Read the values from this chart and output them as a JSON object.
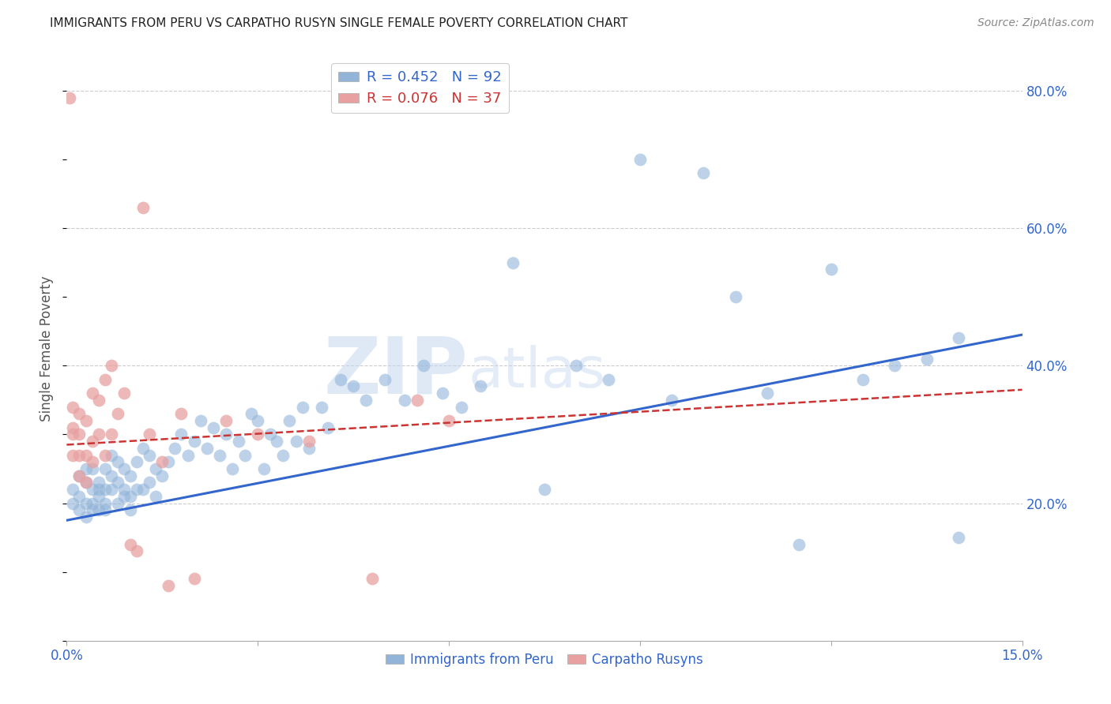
{
  "title": "IMMIGRANTS FROM PERU VS CARPATHO RUSYN SINGLE FEMALE POVERTY CORRELATION CHART",
  "source": "Source: ZipAtlas.com",
  "ylabel": "Single Female Poverty",
  "xlim": [
    0.0,
    0.15
  ],
  "ylim": [
    0.0,
    0.85
  ],
  "xticks": [
    0.0,
    0.03,
    0.06,
    0.09,
    0.12,
    0.15
  ],
  "xticklabels": [
    "0.0%",
    "",
    "",
    "",
    "",
    "15.0%"
  ],
  "yticks_right": [
    0.2,
    0.4,
    0.6,
    0.8
  ],
  "ytick_labels_right": [
    "20.0%",
    "40.0%",
    "60.0%",
    "80.0%"
  ],
  "legend_blue_r": "0.452",
  "legend_blue_n": "92",
  "legend_pink_r": "0.076",
  "legend_pink_n": "37",
  "legend_blue_label": "Immigrants from Peru",
  "legend_pink_label": "Carpatho Rusyns",
  "blue_color": "#92b4d9",
  "pink_color": "#e8a0a0",
  "line_blue_color": "#3366cc",
  "line_pink_color": "#cc3333",
  "title_color": "#222222",
  "axis_label_color": "#3366cc",
  "blue_scatter_x": [
    0.001,
    0.001,
    0.002,
    0.002,
    0.002,
    0.003,
    0.003,
    0.003,
    0.003,
    0.004,
    0.004,
    0.004,
    0.004,
    0.005,
    0.005,
    0.005,
    0.005,
    0.006,
    0.006,
    0.006,
    0.006,
    0.007,
    0.007,
    0.007,
    0.008,
    0.008,
    0.008,
    0.009,
    0.009,
    0.009,
    0.01,
    0.01,
    0.01,
    0.011,
    0.011,
    0.012,
    0.012,
    0.013,
    0.013,
    0.014,
    0.014,
    0.015,
    0.016,
    0.017,
    0.018,
    0.019,
    0.02,
    0.021,
    0.022,
    0.023,
    0.024,
    0.025,
    0.026,
    0.027,
    0.028,
    0.029,
    0.03,
    0.031,
    0.032,
    0.033,
    0.034,
    0.035,
    0.036,
    0.037,
    0.038,
    0.04,
    0.041,
    0.043,
    0.045,
    0.047,
    0.05,
    0.053,
    0.056,
    0.059,
    0.062,
    0.065,
    0.07,
    0.075,
    0.08,
    0.085,
    0.09,
    0.095,
    0.1,
    0.105,
    0.11,
    0.115,
    0.12,
    0.125,
    0.13,
    0.135,
    0.14,
    0.14
  ],
  "blue_scatter_y": [
    0.22,
    0.2,
    0.24,
    0.21,
    0.19,
    0.25,
    0.23,
    0.2,
    0.18,
    0.22,
    0.25,
    0.2,
    0.19,
    0.23,
    0.21,
    0.19,
    0.22,
    0.25,
    0.22,
    0.2,
    0.19,
    0.27,
    0.24,
    0.22,
    0.26,
    0.23,
    0.2,
    0.25,
    0.22,
    0.21,
    0.24,
    0.21,
    0.19,
    0.26,
    0.22,
    0.28,
    0.22,
    0.27,
    0.23,
    0.25,
    0.21,
    0.24,
    0.26,
    0.28,
    0.3,
    0.27,
    0.29,
    0.32,
    0.28,
    0.31,
    0.27,
    0.3,
    0.25,
    0.29,
    0.27,
    0.33,
    0.32,
    0.25,
    0.3,
    0.29,
    0.27,
    0.32,
    0.29,
    0.34,
    0.28,
    0.34,
    0.31,
    0.38,
    0.37,
    0.35,
    0.38,
    0.35,
    0.4,
    0.36,
    0.34,
    0.37,
    0.55,
    0.22,
    0.4,
    0.38,
    0.7,
    0.35,
    0.68,
    0.5,
    0.36,
    0.14,
    0.54,
    0.38,
    0.4,
    0.41,
    0.44,
    0.15
  ],
  "pink_scatter_x": [
    0.0005,
    0.001,
    0.001,
    0.001,
    0.001,
    0.002,
    0.002,
    0.002,
    0.002,
    0.003,
    0.003,
    0.003,
    0.004,
    0.004,
    0.004,
    0.005,
    0.005,
    0.006,
    0.006,
    0.007,
    0.007,
    0.008,
    0.009,
    0.01,
    0.011,
    0.012,
    0.013,
    0.015,
    0.016,
    0.018,
    0.02,
    0.025,
    0.03,
    0.038,
    0.048,
    0.055,
    0.06
  ],
  "pink_scatter_y": [
    0.79,
    0.31,
    0.27,
    0.34,
    0.3,
    0.27,
    0.24,
    0.33,
    0.3,
    0.32,
    0.27,
    0.23,
    0.36,
    0.29,
    0.26,
    0.35,
    0.3,
    0.38,
    0.27,
    0.4,
    0.3,
    0.33,
    0.36,
    0.14,
    0.13,
    0.63,
    0.3,
    0.26,
    0.08,
    0.33,
    0.09,
    0.32,
    0.3,
    0.29,
    0.09,
    0.35,
    0.32
  ],
  "blue_line_x0": 0.0,
  "blue_line_x1": 0.15,
  "blue_line_y0": 0.175,
  "blue_line_y1": 0.445,
  "pink_line_x0": 0.0,
  "pink_line_x1": 0.15,
  "pink_line_y0": 0.285,
  "pink_line_y1": 0.365
}
